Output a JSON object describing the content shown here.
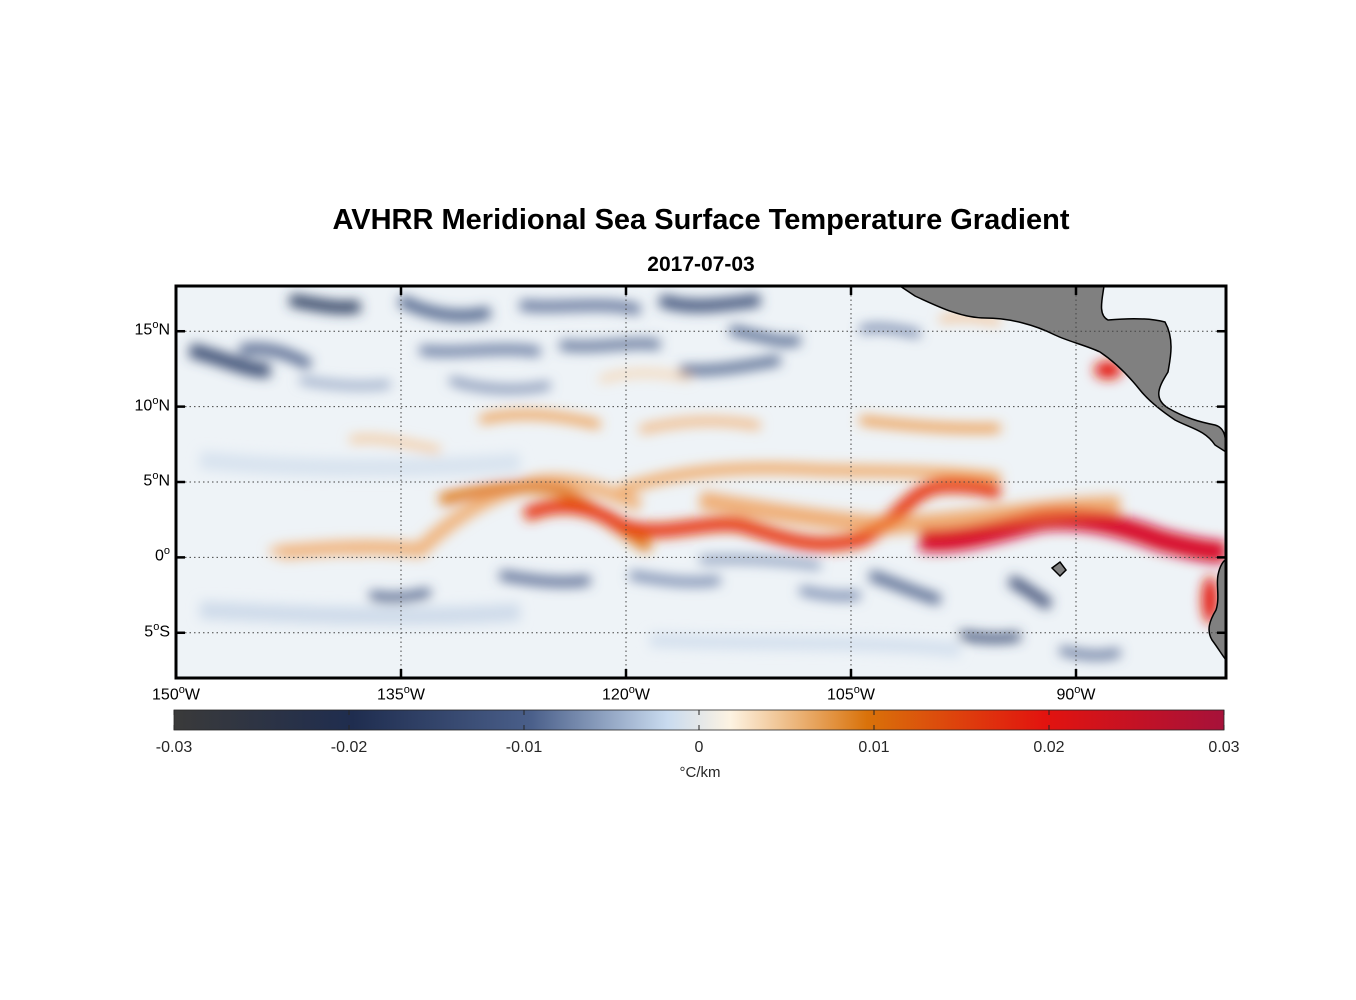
{
  "chart_data": {
    "type": "heatmap",
    "title": "AVHRR Meridional Sea Surface Temperature Gradient",
    "subtitle": "2017-07-03",
    "variable": "meridional SST gradient",
    "x_range_lon": [
      -150,
      -80
    ],
    "y_range_lat": [
      -8,
      18
    ],
    "grid": true,
    "grid_style": "dotted",
    "land_color": "#808080",
    "x_ticks": [
      {
        "value": -150,
        "deg": "150",
        "hemi": "W"
      },
      {
        "value": -135,
        "deg": "135",
        "hemi": "W"
      },
      {
        "value": -120,
        "deg": "120",
        "hemi": "W"
      },
      {
        "value": -105,
        "deg": "105",
        "hemi": "W"
      },
      {
        "value": -90,
        "deg": "90",
        "hemi": "W"
      }
    ],
    "y_ticks": [
      {
        "value": 15,
        "deg": "15",
        "hemi": "N"
      },
      {
        "value": 10,
        "deg": "10",
        "hemi": "N"
      },
      {
        "value": 5,
        "deg": "5",
        "hemi": "N"
      },
      {
        "value": 0,
        "deg": "0",
        "hemi": ""
      },
      {
        "value": -5,
        "deg": "5",
        "hemi": "S"
      }
    ],
    "colorbar": {
      "orientation": "horizontal",
      "placement": "bottom",
      "range": [
        -0.03,
        0.03
      ],
      "tick_labels": [
        "-0.03",
        "-0.02",
        "-0.01",
        "0",
        "0.01",
        "0.02",
        "0.03"
      ],
      "units": "°C/km",
      "colormap": [
        "#3a3a3a",
        "#1f2d4f",
        "#4a5f8a",
        "#c9dbef",
        "#fdf3e2",
        "#d9720a",
        "#e2130f",
        "#a6123a"
      ]
    },
    "features": [
      {
        "name": "equatorial front (positive gradient band)",
        "lat_approx": [
          0,
          5
        ],
        "value_approx": 0.02
      },
      {
        "name": "tropical instability wave troughs (negative gradient)",
        "lat_approx": [
          -5,
          0
        ],
        "value_approx": -0.012
      },
      {
        "name": "northern tropical eddies (negative gradient)",
        "lat_approx": [
          10,
          18
        ],
        "value_approx": -0.015
      }
    ]
  }
}
